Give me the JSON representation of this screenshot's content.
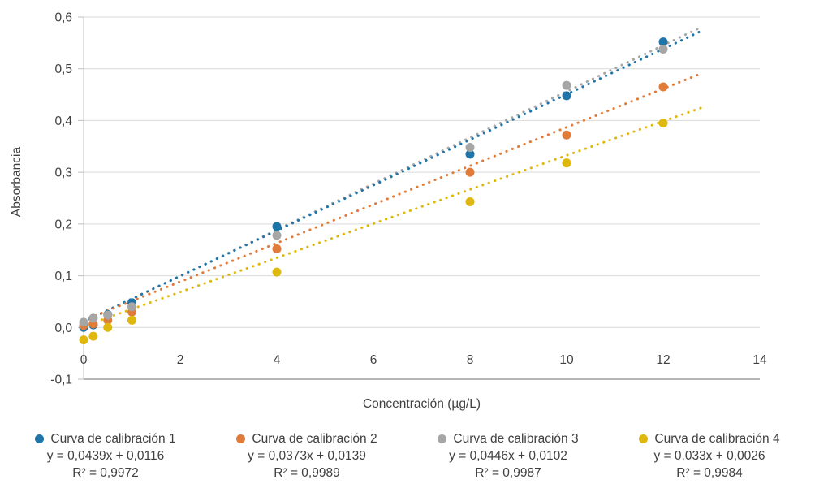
{
  "chart_data": {
    "type": "scatter",
    "title": "",
    "xlabel": "Concentración (µg/L)",
    "ylabel": "Absorbancia",
    "xlim": [
      0,
      14
    ],
    "ylim": [
      -0.1,
      0.6
    ],
    "x_ticks": [
      0,
      2,
      4,
      6,
      8,
      10,
      12,
      14
    ],
    "y_ticks": [
      -0.1,
      0.0,
      0.1,
      0.2,
      0.3,
      0.4,
      0.5,
      0.6
    ],
    "decimal_separator": ",",
    "grid": true,
    "legend_position": "bottom",
    "trendline_style": "dotted",
    "trend_x_range": [
      0,
      12.8
    ],
    "x": [
      0,
      0.2,
      0.5,
      1,
      4,
      8,
      10,
      12
    ],
    "series": [
      {
        "name": "Curva de calibración 1",
        "color": "#1F74A8",
        "equation": "y = 0,0439x + 0,0116",
        "r2": "R² = 0,9972",
        "trend": {
          "slope": 0.0439,
          "intercept": 0.0116
        },
        "values": [
          0.0,
          0.005,
          0.025,
          0.048,
          0.195,
          0.335,
          0.448,
          0.552
        ]
      },
      {
        "name": "Curva de calibración 2",
        "color": "#E07B39",
        "equation": "y = 0,0373x + 0,0139",
        "r2": "R² = 0,9989",
        "trend": {
          "slope": 0.0373,
          "intercept": 0.0139
        },
        "values": [
          0.004,
          0.007,
          0.014,
          0.03,
          0.152,
          0.3,
          0.372,
          0.465
        ]
      },
      {
        "name": "Curva de calibración 3",
        "color": "#A6A6A6",
        "equation": "y = 0,0446x + 0,0102",
        "r2": "R² = 0,9987",
        "trend": {
          "slope": 0.0446,
          "intercept": 0.0102
        },
        "values": [
          0.01,
          0.018,
          0.024,
          0.04,
          0.178,
          0.348,
          0.468,
          0.538
        ]
      },
      {
        "name": "Curva de calibración 4",
        "color": "#DFB80E",
        "equation": "y = 0,033x + 0,0026",
        "r2": "R² = 0,9984",
        "trend": {
          "slope": 0.033,
          "intercept": 0.0026
        },
        "values": [
          -0.024,
          -0.017,
          0.0,
          0.014,
          0.107,
          0.243,
          0.318,
          0.395
        ]
      }
    ],
    "colors": {
      "gridline": "#D9D9D9",
      "axis_line": "#BFBFBF",
      "baseline": "#6E6E6E",
      "text": "#404040"
    }
  }
}
